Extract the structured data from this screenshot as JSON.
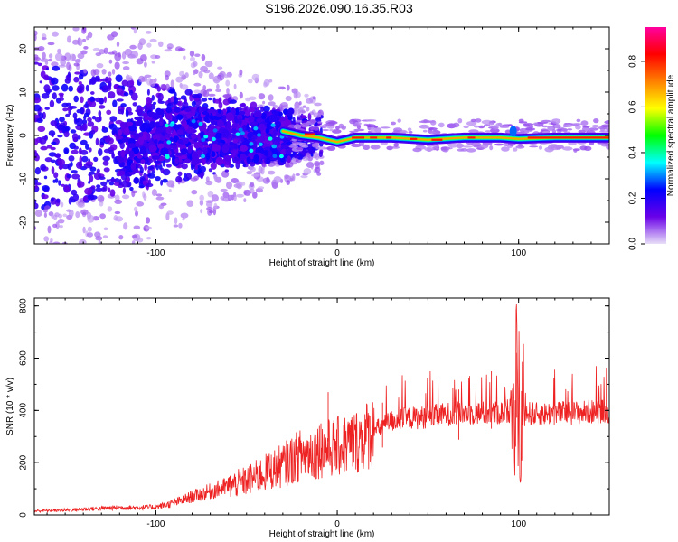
{
  "title": "S196.2026.090.16.35.R03",
  "chart_data": [
    {
      "type": "heatmap",
      "title": "S196.2026.090.16.35.R03",
      "xlabel": "Height of straight line (km)",
      "ylabel": "Frequency (Hz)",
      "xlim": [
        -167,
        150
      ],
      "ylim": [
        -25,
        25
      ],
      "xticks": [
        -100,
        0,
        100
      ],
      "xtick_labels": [
        "-100",
        "0",
        "100"
      ],
      "yticks": [
        -20,
        -10,
        0,
        10,
        20
      ],
      "ytick_labels": [
        "-20",
        "-10",
        "0",
        "10",
        "20"
      ],
      "colorbar": {
        "label": "Normalized spectral amplitude",
        "range": [
          0,
          0.95
        ],
        "ticks": [
          0.0,
          0.2,
          0.4,
          0.6,
          0.8
        ],
        "tick_labels": [
          "0.0",
          "0.2",
          "0.4",
          "0.6",
          "0.8"
        ],
        "colormap": [
          "#e8e0f8",
          "#6a00e8",
          "#0000ff",
          "#00ffff",
          "#00ff00",
          "#ffff00",
          "#ff8000",
          "#ff0000",
          "#ff00a0"
        ]
      },
      "ridge": {
        "description": "narrow high-amplitude band near 0 Hz",
        "points": [
          [
            -30,
            1.0
          ],
          [
            -20,
            0.0
          ],
          [
            -10,
            -0.5
          ],
          [
            0,
            -1.5
          ],
          [
            10,
            -0.5
          ],
          [
            30,
            -0.5
          ],
          [
            50,
            -1.0
          ],
          [
            70,
            -0.5
          ],
          [
            90,
            -0.5
          ],
          [
            100,
            -0.8
          ],
          [
            120,
            -0.5
          ],
          [
            150,
            -0.5
          ]
        ]
      }
    },
    {
      "type": "line",
      "xlabel": "Height of straight line (km)",
      "ylabel": "SNR (10 * v/v)",
      "xlim": [
        -167,
        150
      ],
      "ylim": [
        0,
        830
      ],
      "xticks": [
        -100,
        0,
        100
      ],
      "xtick_labels": [
        "-100",
        "0",
        "100"
      ],
      "yticks": [
        0,
        200,
        400,
        600,
        800
      ],
      "ytick_labels": [
        "0",
        "200",
        "400",
        "600",
        "800"
      ],
      "series": [
        {
          "name": "SNR",
          "color": "#ee2222",
          "x": [
            -167,
            -150,
            -140,
            -130,
            -120,
            -110,
            -100,
            -90,
            -80,
            -70,
            -60,
            -50,
            -40,
            -30,
            -20,
            -10,
            0,
            10,
            20,
            30,
            40,
            50,
            60,
            70,
            80,
            90,
            95,
            98,
            100,
            102,
            105,
            110,
            120,
            130,
            140,
            150
          ],
          "y": [
            15,
            18,
            22,
            25,
            28,
            28,
            30,
            45,
            70,
            90,
            110,
            130,
            160,
            190,
            230,
            250,
            260,
            280,
            320,
            360,
            370,
            375,
            385,
            390,
            390,
            390,
            400,
            820,
            150,
            380,
            390,
            385,
            390,
            390,
            395,
            400
          ],
          "spikes": [
            [
              -5,
              470
            ],
            [
              -9,
              350
            ],
            [
              25,
              430
            ],
            [
              67,
              480
            ],
            [
              85,
              550
            ],
            [
              99,
              620
            ]
          ]
        }
      ]
    }
  ]
}
